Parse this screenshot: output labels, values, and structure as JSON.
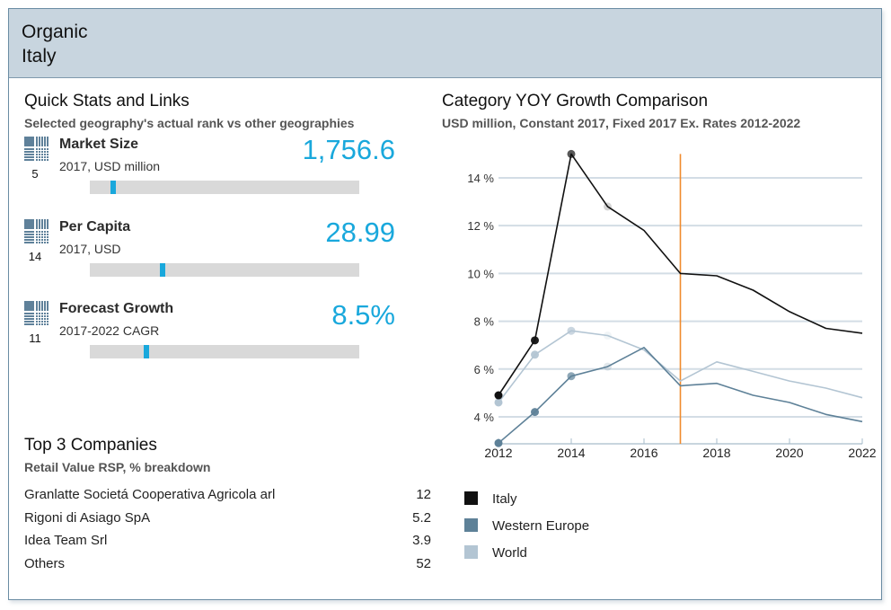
{
  "header": {
    "category": "Organic",
    "geography": "Italy"
  },
  "quick_stats": {
    "title": "Quick Stats and Links",
    "subtitle": "Selected geography's actual rank vs other geographies",
    "items": [
      {
        "icon": "rank-grid-icon",
        "rank": "5",
        "label": "Market Size",
        "sublabel": "2017, USD million",
        "value": "1,756.6",
        "marker_position": 0.087
      },
      {
        "icon": "rank-grid-icon",
        "rank": "14",
        "label": "Per Capita",
        "sublabel": "2017, USD",
        "value": "28.99",
        "marker_position": 0.27
      },
      {
        "icon": "rank-grid-icon",
        "rank": "11",
        "label": "Forecast Growth",
        "sublabel": "2017-2022 CAGR",
        "value": "8.5%",
        "marker_position": 0.21
      }
    ]
  },
  "top_companies": {
    "title": "Top 3 Companies",
    "subtitle": "Retail Value RSP, % breakdown",
    "rows": [
      {
        "name": "Granlatte Societá Cooperativa Agricola arl",
        "value": "12"
      },
      {
        "name": "Rigoni di Asiago SpA",
        "value": "5.2"
      },
      {
        "name": "Idea Team Srl",
        "value": "3.9"
      },
      {
        "name": "Others",
        "value": "52"
      }
    ]
  },
  "colors": {
    "accent": "#19a8dc",
    "header_bg": "#c8d5df",
    "bar_track": "#d9d9d9",
    "icon": "#5f819a"
  },
  "chart_data": {
    "type": "line",
    "title": "Category YOY Growth Comparison",
    "subtitle": "USD million, Constant 2017, Fixed 2017 Ex. Rates 2012-2022",
    "xlabel": "",
    "ylabel": "",
    "x": [
      2012,
      2013,
      2014,
      2015,
      2016,
      2017,
      2018,
      2019,
      2020,
      2021,
      2022
    ],
    "xticks": [
      2012,
      2014,
      2016,
      2018,
      2020,
      2022
    ],
    "xtick_labels": [
      "2012",
      "2014",
      "2016",
      "2018",
      "2020",
      "2022"
    ],
    "yticks": [
      4,
      6,
      8,
      10,
      12,
      14
    ],
    "ytick_labels": [
      "4 %",
      "6 %",
      "8 %",
      "10 %",
      "12 %",
      "14 %"
    ],
    "ylim": [
      2.87,
      15.0
    ],
    "grid": true,
    "forecast_divider_x": 2017,
    "divider_color": "#f08a2c",
    "legend_placement": "bottom-left",
    "series": [
      {
        "name": "Italy",
        "color": "#111111",
        "values": [
          4.9,
          7.2,
          15.0,
          12.8,
          11.8,
          10.0,
          9.9,
          9.3,
          8.4,
          7.7,
          7.5
        ]
      },
      {
        "name": "Western Europe",
        "color": "#5e8198",
        "values": [
          2.9,
          4.2,
          5.7,
          6.1,
          6.9,
          5.3,
          5.4,
          4.9,
          4.6,
          4.1,
          3.8
        ]
      },
      {
        "name": "World",
        "color": "#b3c5d3",
        "values": [
          4.6,
          6.6,
          7.6,
          7.4,
          6.8,
          5.5,
          6.3,
          5.9,
          5.5,
          5.2,
          4.8
        ]
      }
    ]
  }
}
